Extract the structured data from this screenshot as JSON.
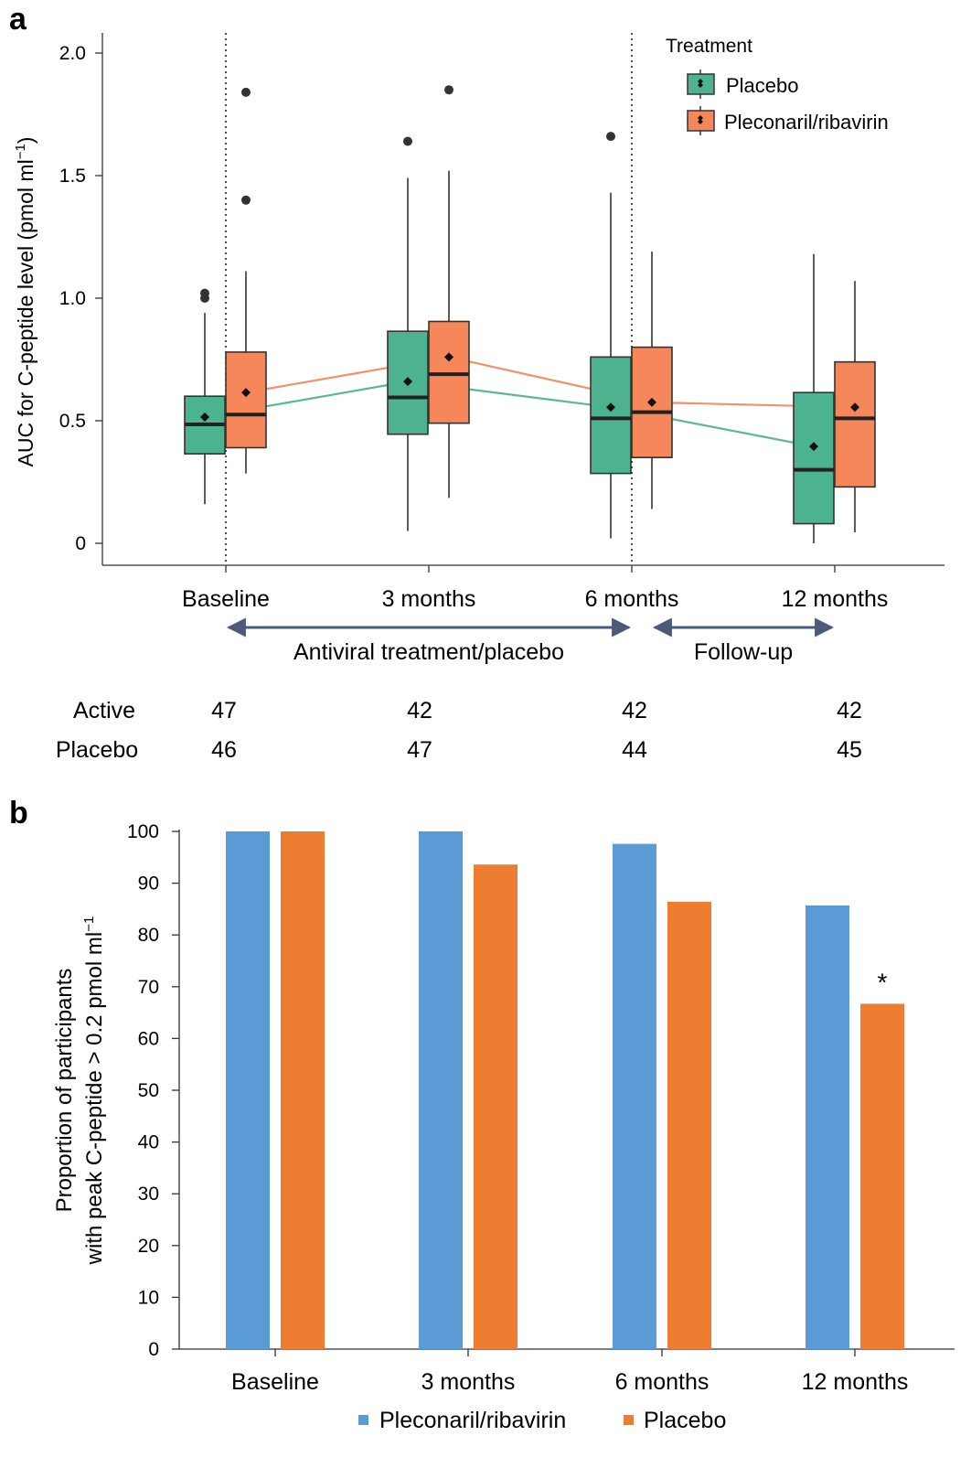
{
  "chart_data": [
    {
      "panel_label": "a",
      "type": "box",
      "ylabel": "AUC for C-peptide level (pmol ml",
      "ylabel_sup": "−1",
      "ylabel_close": ")",
      "ylim": [
        -0.1,
        2.1
      ],
      "yticks": [
        0,
        0.5,
        1.0,
        1.5,
        2.0
      ],
      "ytick_labels": [
        "0",
        "0.5",
        "1.0",
        "1.5",
        "2.0"
      ],
      "categories": [
        "Baseline",
        "3 months",
        "6 months",
        "12 months"
      ],
      "grid": false,
      "legend": {
        "title": "Treatment",
        "position": "top-right"
      },
      "phases": [
        {
          "label": "Antiviral treatment/placebo",
          "from": "Baseline",
          "to": "6 months"
        },
        {
          "label": "Follow-up",
          "from": "6 months",
          "to": "12 months"
        }
      ],
      "series": [
        {
          "name": "Placebo",
          "color": "#4db38e",
          "line_color": "#5cb894",
          "boxes": [
            {
              "min": 0.16,
              "q1": 0.365,
              "median": 0.485,
              "q3": 0.6,
              "max": 0.94,
              "mean": 0.515,
              "outliers": [
                1.0,
                1.02
              ]
            },
            {
              "min": 0.05,
              "q1": 0.445,
              "median": 0.595,
              "q3": 0.865,
              "max": 1.49,
              "mean": 0.66,
              "outliers": [
                1.64
              ]
            },
            {
              "min": 0.02,
              "q1": 0.285,
              "median": 0.51,
              "q3": 0.76,
              "max": 1.43,
              "mean": 0.555,
              "outliers": [
                1.66
              ]
            },
            {
              "min": 0.0,
              "q1": 0.08,
              "median": 0.3,
              "q3": 0.615,
              "max": 1.18,
              "mean": 0.395,
              "outliers": []
            }
          ]
        },
        {
          "name": "Pleconaril/ribavirin",
          "color": "#f5875a",
          "line_color": "#f2906a",
          "boxes": [
            {
              "min": 0.285,
              "q1": 0.39,
              "median": 0.525,
              "q3": 0.78,
              "max": 1.11,
              "mean": 0.615,
              "outliers": [
                1.4,
                1.84
              ]
            },
            {
              "min": 0.185,
              "q1": 0.49,
              "median": 0.69,
              "q3": 0.905,
              "max": 1.52,
              "mean": 0.76,
              "outliers": [
                1.85
              ]
            },
            {
              "min": 0.14,
              "q1": 0.35,
              "median": 0.535,
              "q3": 0.8,
              "max": 1.19,
              "mean": 0.575,
              "outliers": []
            },
            {
              "min": 0.045,
              "q1": 0.23,
              "median": 0.51,
              "q3": 0.74,
              "max": 1.07,
              "mean": 0.555,
              "outliers": []
            }
          ]
        }
      ],
      "counts_table": {
        "rows": [
          {
            "label": "Active",
            "values": [
              "47",
              "42",
              "42",
              "42"
            ]
          },
          {
            "label": "Placebo",
            "values": [
              "46",
              "47",
              "44",
              "45"
            ]
          }
        ]
      }
    },
    {
      "panel_label": "b",
      "type": "bar",
      "ylabel_line1": "Proportion of participants",
      "ylabel_line2": "with peak C-peptide > 0.2 pmol ml",
      "ylabel_sup": "−1",
      "ylim": [
        0,
        100
      ],
      "yticks": [
        0,
        10,
        20,
        30,
        40,
        50,
        60,
        70,
        80,
        90,
        100
      ],
      "categories": [
        "Baseline",
        "3 months",
        "6 months",
        "12 months"
      ],
      "grid": false,
      "legend": {
        "position": "bottom"
      },
      "series": [
        {
          "name": "Pleconaril/ribavirin",
          "color": "#5b9bd5",
          "values": [
            100,
            100,
            97.6,
            85.7
          ]
        },
        {
          "name": "Placebo",
          "color": "#ed7d31",
          "values": [
            100,
            93.6,
            86.4,
            66.7
          ]
        }
      ],
      "annotations": [
        {
          "text": "*",
          "category": "12 months",
          "series": "Placebo"
        }
      ]
    }
  ]
}
